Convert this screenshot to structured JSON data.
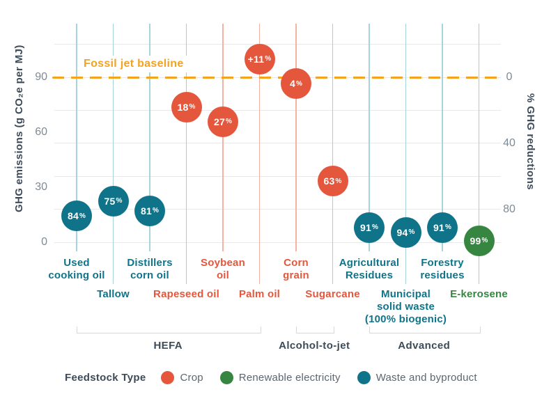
{
  "legend": {
    "title": "Feedstock Type",
    "items": [
      {
        "label": "Crop",
        "color": "#e4573d"
      },
      {
        "label": "Renewable electricity",
        "color": "#368540"
      },
      {
        "label": "Waste and byproduct",
        "color": "#0f7489"
      }
    ]
  },
  "chart_data": {
    "type": "scatter",
    "ylabel_left": "GHG emissions (g CO₂e per MJ)",
    "ylabel_right": "% GHG reductions",
    "left_ticks": [
      0,
      30,
      60,
      90
    ],
    "right_ticks": [
      0,
      40,
      80
    ],
    "right_grid_range": [
      -20,
      100
    ],
    "right_grid_step": 20,
    "baseline": {
      "value": 90,
      "label": "Fossil jet baseline",
      "color": "#f5a21f"
    },
    "types": {
      "crop": {
        "color": "#e4573d",
        "line_color": "#f3b2a4"
      },
      "waste": {
        "color": "#0f7489",
        "line_color": "#a6d3dc"
      },
      "renewable": {
        "color": "#368540",
        "line_color": "#aed0ae"
      }
    },
    "groups": [
      {
        "label": "HEFA",
        "from": 0,
        "to": 5
      },
      {
        "label": "Alcohol-to-jet",
        "from": 6,
        "to": 7
      },
      {
        "label": "Advanced",
        "from": 8,
        "to": 11
      }
    ],
    "points": [
      {
        "name": "Used cooking oil",
        "label_lines": [
          "Used",
          "cooking oil"
        ],
        "row": 1,
        "type": "waste",
        "reduction": "84%",
        "emissions_g_per_mj": 14.4
      },
      {
        "name": "Tallow",
        "label_lines": [
          "Tallow"
        ],
        "row": 2,
        "type": "waste",
        "reduction": "75%",
        "emissions_g_per_mj": 22.5
      },
      {
        "name": "Distillers corn oil",
        "label_lines": [
          "Distillers",
          "corn oil"
        ],
        "row": 1,
        "type": "waste",
        "reduction": "81%",
        "emissions_g_per_mj": 17.1
      },
      {
        "name": "Rapeseed oil",
        "label_lines": [
          "Rapeseed oil"
        ],
        "row": 2,
        "type": "crop",
        "reduction": "18%",
        "emissions_g_per_mj": 73.8
      },
      {
        "name": "Soybean oil",
        "label_lines": [
          "Soybean",
          "oil"
        ],
        "row": 1,
        "type": "crop",
        "reduction": "27%",
        "emissions_g_per_mj": 65.7
      },
      {
        "name": "Palm oil",
        "label_lines": [
          "Palm oil"
        ],
        "row": 2,
        "type": "crop",
        "reduction": "+11%",
        "emissions_g_per_mj": 99.9
      },
      {
        "name": "Corn grain",
        "label_lines": [
          "Corn",
          "grain"
        ],
        "row": 1,
        "type": "crop",
        "reduction": "4%",
        "emissions_g_per_mj": 86.4
      },
      {
        "name": "Sugarcane",
        "label_lines": [
          "Sugarcane"
        ],
        "row": 2,
        "type": "crop",
        "reduction": "63%",
        "emissions_g_per_mj": 33.3
      },
      {
        "name": "Agricultural Residues",
        "label_lines": [
          "Agricultural",
          "Residues"
        ],
        "row": 1,
        "type": "waste",
        "reduction": "91%",
        "emissions_g_per_mj": 8.1
      },
      {
        "name": "Municipal solid waste (100% biogenic)",
        "label_lines": [
          "Municipal",
          "solid waste",
          "(100% biogenic)"
        ],
        "row": 2,
        "type": "waste",
        "reduction": "94%",
        "emissions_g_per_mj": 5.4
      },
      {
        "name": "Forestry residues",
        "label_lines": [
          "Forestry",
          "residues"
        ],
        "row": 1,
        "type": "waste",
        "reduction": "91%",
        "emissions_g_per_mj": 8.1
      },
      {
        "name": "E-kerosene",
        "label_lines": [
          "E-kerosene"
        ],
        "row": 2,
        "type": "renewable",
        "reduction": "99%",
        "emissions_g_per_mj": 0.9
      }
    ]
  }
}
